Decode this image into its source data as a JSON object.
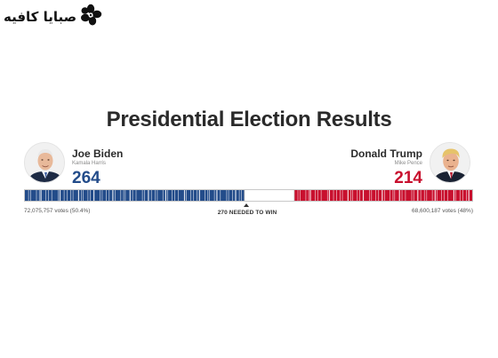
{
  "brand": {
    "logo_text": "صبايا كافيه",
    "flower_icon": "flower-logo-icon"
  },
  "title": "Presidential Election Results",
  "candidates": {
    "biden": {
      "name": "Joe Biden",
      "running_mate": "Kamala Harris",
      "electoral_votes": "264",
      "popular_votes": "72,075,757 votes (50.4%)",
      "color": "#234c8a",
      "photo_icon": "joe-biden-portrait-icon"
    },
    "trump": {
      "name": "Donald Trump",
      "running_mate": "Mike Pence",
      "electoral_votes": "214",
      "popular_votes": "68,600,187 votes (48%)",
      "color": "#c8102e",
      "photo_icon": "donald-trump-portrait-icon"
    }
  },
  "threshold": {
    "label": "270 NEEDED TO WIN",
    "total_electoral_votes": 538,
    "needed": 270
  },
  "colors": {
    "democrat": "#234c8a",
    "republican": "#c8102e",
    "uncalled": "#ffffff"
  }
}
